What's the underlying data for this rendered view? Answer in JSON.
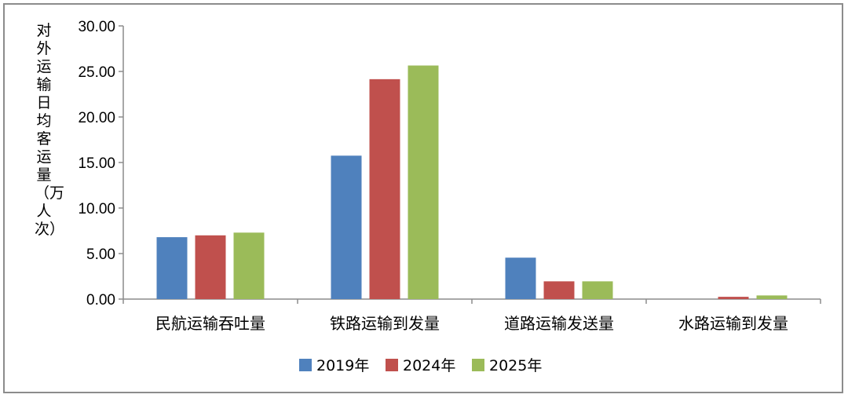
{
  "chart_data": {
    "type": "bar",
    "ylabel": "对外运输日均客运量（万人次）",
    "categories": [
      "民航运输吞吐量",
      "铁路运输到发量",
      "道路运输发送量",
      "水路运输到发量"
    ],
    "series": [
      {
        "name": "2019年",
        "color": "#4f81bd",
        "values": [
          6.8,
          15.75,
          4.55,
          0.0
        ]
      },
      {
        "name": "2024年",
        "color": "#c0504d",
        "values": [
          7.0,
          24.15,
          1.95,
          0.25
        ]
      },
      {
        "name": "2025年",
        "color": "#9bbb59",
        "values": [
          7.3,
          25.65,
          1.95,
          0.4
        ]
      }
    ],
    "yticks": [
      "0.00",
      "5.00",
      "10.00",
      "15.00",
      "20.00",
      "25.00",
      "30.00"
    ],
    "ylim": [
      0,
      30
    ],
    "grid": false,
    "legend_position": "bottom"
  }
}
